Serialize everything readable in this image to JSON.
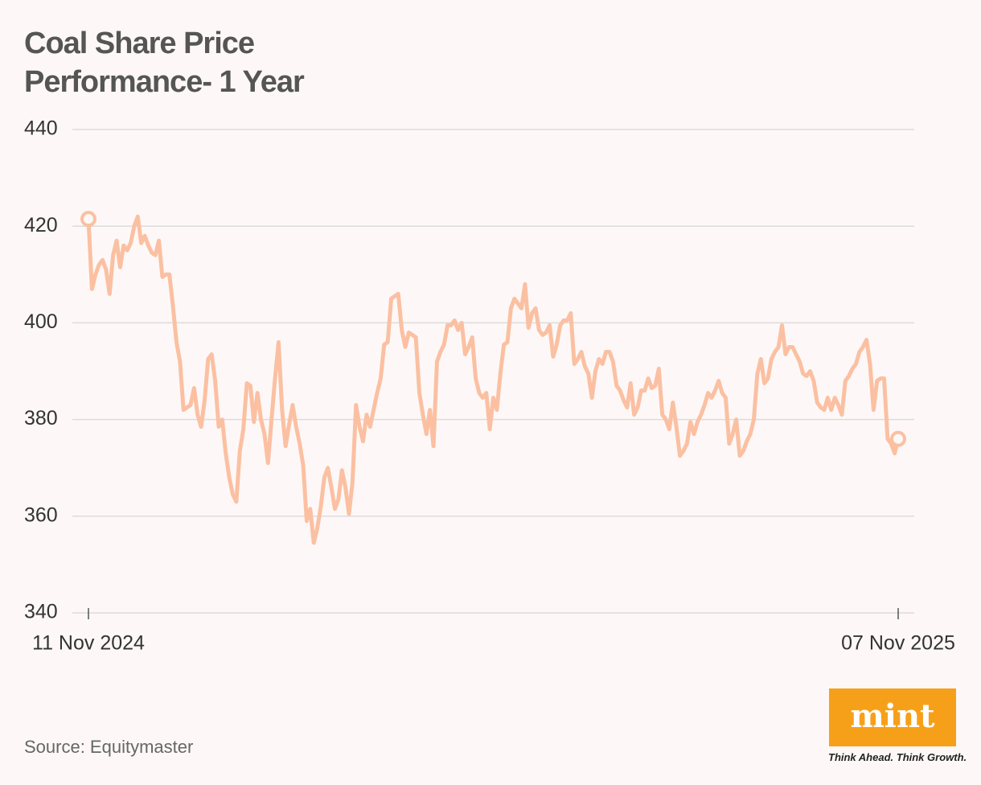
{
  "chart_data": {
    "type": "line",
    "title": "Coal Share Price Performance- 1 Year",
    "source": "Source: Equitymaster",
    "categories": [
      "11 Nov 2024",
      null,
      null,
      null,
      null,
      null,
      null,
      null,
      null,
      null,
      null,
      null,
      null,
      null,
      null,
      null,
      null,
      null,
      null,
      null,
      null,
      null,
      null,
      null,
      null,
      null,
      null,
      null,
      null,
      null,
      null,
      null,
      null,
      null,
      null,
      null,
      null,
      null,
      null,
      null,
      null,
      null,
      null,
      null,
      null,
      null,
      null,
      null,
      null,
      null,
      null,
      null,
      null,
      null,
      null,
      null,
      null,
      null,
      null,
      null,
      null,
      null,
      null,
      null,
      null,
      null,
      null,
      null,
      null,
      null,
      null,
      null,
      null,
      null,
      null,
      null,
      null,
      null,
      null,
      null,
      null,
      null,
      null,
      null,
      null,
      null,
      null,
      null,
      null,
      null,
      null,
      null,
      null,
      null,
      null,
      null,
      null,
      null,
      null,
      null,
      null,
      null,
      null,
      null,
      null,
      null,
      null,
      null,
      null,
      null,
      null,
      null,
      null,
      null,
      null,
      null,
      null,
      null,
      null,
      null,
      null,
      null,
      null,
      null,
      null,
      null,
      null,
      null,
      null,
      null,
      null,
      null,
      null,
      null,
      null,
      null,
      null,
      null,
      null,
      null,
      null,
      null,
      null,
      null,
      null,
      null,
      null,
      null,
      null,
      null,
      null,
      null,
      null,
      null,
      null,
      null,
      null,
      null,
      null,
      null,
      null,
      null,
      null,
      null,
      null,
      null,
      null,
      null,
      null,
      null,
      null,
      null,
      null,
      null,
      null,
      null,
      null,
      null,
      null,
      null,
      null,
      null,
      null,
      null,
      null,
      null,
      null,
      null,
      null,
      null,
      null,
      null,
      null,
      null,
      null,
      null,
      null,
      null,
      null,
      null,
      null,
      null,
      null,
      null,
      null,
      null,
      null,
      null,
      null,
      null,
      null,
      null,
      null,
      null,
      null,
      null,
      null,
      null,
      null,
      null,
      null,
      null,
      null,
      null,
      null,
      null,
      null,
      null,
      null,
      null,
      "07 Nov 2025"
    ],
    "values": [
      421.5,
      407,
      410,
      412,
      413,
      411,
      406,
      414,
      417,
      411.5,
      416,
      415,
      416.5,
      420,
      422,
      416.5,
      418,
      416,
      414.5,
      414,
      417,
      409.5,
      410,
      410,
      403.5,
      396,
      392,
      382,
      382.5,
      383,
      386.5,
      381,
      378.5,
      384,
      392.5,
      393.5,
      388,
      378.5,
      380,
      373,
      368,
      364.5,
      363,
      373.5,
      378,
      387.5,
      387,
      379.5,
      385.5,
      380,
      377,
      371,
      380,
      388.5,
      396,
      382,
      374.5,
      379,
      383,
      378.5,
      375,
      370.5,
      359,
      361.5,
      354.5,
      357.5,
      362,
      368,
      370,
      366,
      361.5,
      363.5,
      369.5,
      366,
      360.5,
      367,
      383,
      378.5,
      375.5,
      381,
      378.5,
      382,
      385.5,
      388.5,
      395.5,
      396,
      405,
      405.5,
      406,
      398.5,
      395,
      398,
      397.5,
      397,
      385.5,
      381,
      377,
      382,
      374.5,
      392,
      394,
      395.5,
      399.5,
      399.5,
      400.5,
      398.5,
      400,
      393.5,
      395,
      397,
      388.5,
      385.5,
      384.5,
      385.5,
      378,
      384.5,
      382,
      389.5,
      395.5,
      396,
      403,
      405,
      404,
      403,
      408,
      399,
      402,
      403,
      398.5,
      397.5,
      398,
      399.5,
      393,
      395.5,
      399.5,
      400.5,
      400.5,
      402,
      391.5,
      392.5,
      394,
      391,
      389.5,
      384.5,
      390,
      392.5,
      391.5,
      394,
      394,
      392,
      387,
      386,
      384,
      382.5,
      387.5,
      381,
      382.5,
      386,
      386,
      388.5,
      386.5,
      387,
      390.5,
      381,
      380,
      378,
      383.5,
      378.5,
      372.5,
      373.5,
      375,
      379.5,
      377,
      379.5,
      381,
      383,
      385.5,
      384.5,
      386,
      388,
      385.5,
      384.5,
      375,
      377,
      380,
      372.5,
      373.5,
      375.5,
      377,
      380,
      389.5,
      392.5,
      387.5,
      388.5,
      392.5,
      394,
      395,
      399.5,
      393.5,
      395,
      395,
      393.5,
      392,
      389.5,
      389,
      390,
      388,
      383.5,
      382.5,
      382,
      384.5,
      382,
      384.5,
      383,
      381,
      388,
      389,
      390.5,
      391.5,
      394,
      395,
      396.5,
      391.5,
      382,
      388,
      388.5,
      388.5,
      376,
      375,
      373,
      376
    ],
    "color": "#fbc0a2",
    "ylim": [
      340,
      440
    ],
    "yticks": [
      340,
      360,
      380,
      400,
      420,
      440
    ],
    "grid": true
  },
  "logo": {
    "name": "mint",
    "tagline": "Think Ahead. Think Growth."
  }
}
